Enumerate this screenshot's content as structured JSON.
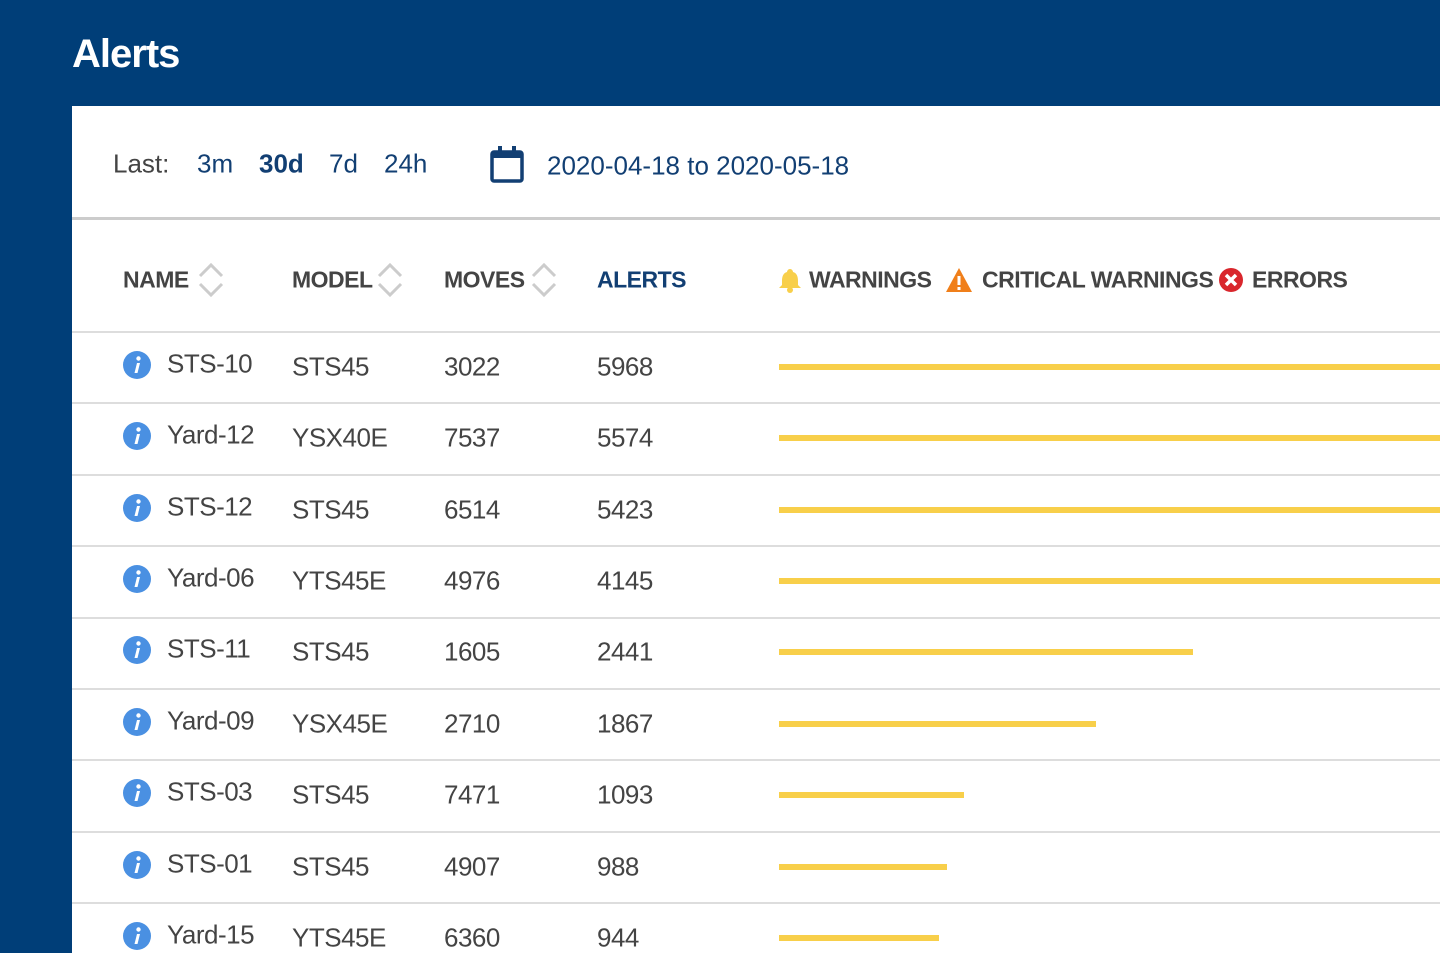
{
  "header": {
    "title": "Alerts"
  },
  "filters": {
    "label": "Last:",
    "options": [
      "3m",
      "30d",
      "7d",
      "24h"
    ],
    "selected": 1,
    "date_range": "2020-04-18 to 2020-05-18"
  },
  "table": {
    "columns": [
      "NAME",
      "MODEL",
      "MOVES",
      "ALERTS"
    ],
    "sortable": [
      true,
      true,
      true,
      false
    ],
    "legend": [
      {
        "name": "WARNINGS",
        "color": "#f8cf4a"
      },
      {
        "name": "CRITICAL WARNINGS",
        "color": "#f07f1a"
      },
      {
        "name": "ERRORS",
        "color": "#d9262c"
      }
    ],
    "rows": [
      [
        "STS-10",
        "STS45",
        3022,
        5968
      ],
      [
        "Yard-12",
        "YSX40E",
        7537,
        5574
      ],
      [
        "STS-12",
        "STS45",
        6514,
        5423
      ],
      [
        "Yard-06",
        "YTS45E",
        4976,
        4145
      ],
      [
        "STS-11",
        "STS45",
        1605,
        2441
      ],
      [
        "Yard-09",
        "YSX45E",
        2710,
        1867
      ],
      [
        "STS-03",
        "STS45",
        7471,
        1093
      ],
      [
        "STS-01",
        "STS45",
        4907,
        988
      ],
      [
        "Yard-15",
        "YTS45E",
        6360,
        944
      ]
    ]
  }
}
